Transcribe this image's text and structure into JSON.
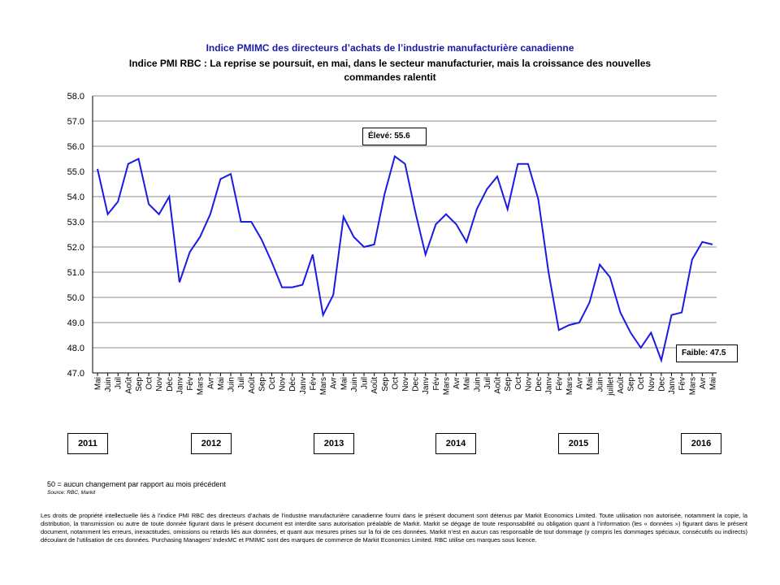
{
  "header": {
    "title": "Indice PMIMC des directeurs d’achats de l’industrie manufacturière canadienne",
    "subtitle": "Indice PMI RBC : La reprise se poursuit, en mai, dans le secteur manufacturier, mais la croissance des nouvelles commandes ralentit"
  },
  "chart_data": {
    "type": "line",
    "title": "Indice PMIMC des directeurs d’achats de l’industrie manufacturière canadienne",
    "subtitle": "Indice PMI RBC : La reprise se poursuit, en mai, dans le secteur manufacturier, mais la croissance des nouvelles commandes ralentit",
    "xlabel": "",
    "ylabel": "",
    "ylim": [
      47.0,
      58.0
    ],
    "y_ticks": [
      "58.0",
      "57.0",
      "56.0",
      "55.0",
      "54.0",
      "53.0",
      "52.0",
      "51.0",
      "50.0",
      "49.0",
      "48.0",
      "47.0"
    ],
    "grid": true,
    "line_color": "#1a1ae6",
    "categories": [
      "Mai",
      "Juin",
      "Juil",
      "Août",
      "Sep",
      "Oct",
      "Nov",
      "Déc",
      "Janv",
      "Fév",
      "Mars",
      "Avr",
      "Mai",
      "Juin",
      "Juil",
      "Août",
      "Sep",
      "Oct",
      "Nov",
      "Déc",
      "Janv",
      "Fév",
      "Mars",
      "Avr",
      "Mai",
      "Juin",
      "Juil",
      "Août",
      "Sep",
      "Oct",
      "Nov",
      "Dec",
      "Janv",
      "Fév",
      "Mars",
      "Avr",
      "Mai",
      "Juin",
      "Juil",
      "Août",
      "Sep",
      "Oct",
      "Nov",
      "Dec",
      "Janv",
      "Fév",
      "Mars",
      "Avr",
      "Mai",
      "Juin",
      "juillet",
      "Août",
      "Sep",
      "Oct",
      "Nov",
      "Dec",
      "Janv",
      "Fév",
      "Mars",
      "Avr",
      "Mai"
    ],
    "series": [
      {
        "values": [
          55.1,
          53.3,
          53.8,
          55.3,
          55.5,
          53.7,
          53.3,
          54.0,
          50.6,
          51.8,
          52.4,
          53.3,
          54.7,
          54.9,
          53.0,
          53.0,
          52.3,
          51.4,
          50.4,
          50.4,
          50.5,
          51.7,
          49.3,
          50.1,
          53.2,
          52.4,
          52.0,
          52.1,
          54.1,
          55.6,
          55.3,
          53.4,
          51.7,
          52.9,
          53.3,
          52.9,
          52.2,
          53.5,
          54.3,
          54.8,
          53.5,
          55.3,
          55.3,
          53.9,
          51.0,
          48.7,
          48.9,
          49.0,
          49.8,
          51.3,
          50.8,
          49.4,
          48.6,
          48.0,
          48.6,
          47.5,
          49.3,
          49.4,
          51.5,
          52.2,
          52.1
        ]
      }
    ],
    "annotations": {
      "high": "Élevé: 55.6",
      "low": "Faible: 47.5"
    },
    "years": [
      "2011",
      "2012",
      "2013",
      "2014",
      "2015",
      "2016"
    ]
  },
  "footer": {
    "note": "50 = aucun changement par rapport au mois précédent",
    "source": "Source: RBC, Markit",
    "disclaimer": "Les droits de propriété intellectuelle liés à l’indice PMI RBC des directeurs d’achats de l’industrie manufacturière canadienne fourni dans le présent document sont détenus par Markit Economics Limited. Toute utilisation non autorisée, notamment la copie, la distribution, la transmission ou autre de toute donnée figurant dans le présent document est interdite sans autorisation préalable de Markit. Markit se dégage de toute responsabilité ou obligation quant à l’information (les « données ») figurant dans le présent document, notamment les erreurs, inexactitudes, omissions ou retards liés aux données, et quant aux mesures prises sur la foi de ces données. Markit n’est en aucun cas responsable de tout dommage (y compris les dommages spéciaux, consécutifs ou indirects) découlant de l’utilisation de ces données. Purchasing Managers’ IndexMC et PMIMC sont des marques de commerce de Markit Economics Limited. RBC utilise ces marques sous licence."
  }
}
